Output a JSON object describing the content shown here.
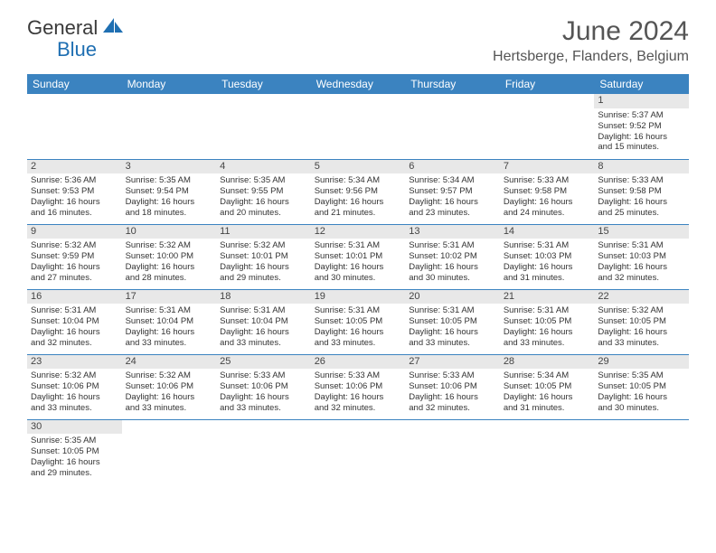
{
  "logo": {
    "text1": "General",
    "text2": "Blue"
  },
  "title": "June 2024",
  "location": "Hertsberge, Flanders, Belgium",
  "colors": {
    "header_bg": "#3b83c0",
    "header_text": "#ffffff",
    "daynum_bg": "#e8e8e8",
    "border": "#3b83c0",
    "text": "#333333",
    "logo_blue": "#1f6fb2"
  },
  "weekdays": [
    "Sunday",
    "Monday",
    "Tuesday",
    "Wednesday",
    "Thursday",
    "Friday",
    "Saturday"
  ],
  "weeks": [
    [
      null,
      null,
      null,
      null,
      null,
      null,
      {
        "n": "1",
        "sr": "Sunrise: 5:37 AM",
        "ss": "Sunset: 9:52 PM",
        "d1": "Daylight: 16 hours",
        "d2": "and 15 minutes."
      }
    ],
    [
      {
        "n": "2",
        "sr": "Sunrise: 5:36 AM",
        "ss": "Sunset: 9:53 PM",
        "d1": "Daylight: 16 hours",
        "d2": "and 16 minutes."
      },
      {
        "n": "3",
        "sr": "Sunrise: 5:35 AM",
        "ss": "Sunset: 9:54 PM",
        "d1": "Daylight: 16 hours",
        "d2": "and 18 minutes."
      },
      {
        "n": "4",
        "sr": "Sunrise: 5:35 AM",
        "ss": "Sunset: 9:55 PM",
        "d1": "Daylight: 16 hours",
        "d2": "and 20 minutes."
      },
      {
        "n": "5",
        "sr": "Sunrise: 5:34 AM",
        "ss": "Sunset: 9:56 PM",
        "d1": "Daylight: 16 hours",
        "d2": "and 21 minutes."
      },
      {
        "n": "6",
        "sr": "Sunrise: 5:34 AM",
        "ss": "Sunset: 9:57 PM",
        "d1": "Daylight: 16 hours",
        "d2": "and 23 minutes."
      },
      {
        "n": "7",
        "sr": "Sunrise: 5:33 AM",
        "ss": "Sunset: 9:58 PM",
        "d1": "Daylight: 16 hours",
        "d2": "and 24 minutes."
      },
      {
        "n": "8",
        "sr": "Sunrise: 5:33 AM",
        "ss": "Sunset: 9:58 PM",
        "d1": "Daylight: 16 hours",
        "d2": "and 25 minutes."
      }
    ],
    [
      {
        "n": "9",
        "sr": "Sunrise: 5:32 AM",
        "ss": "Sunset: 9:59 PM",
        "d1": "Daylight: 16 hours",
        "d2": "and 27 minutes."
      },
      {
        "n": "10",
        "sr": "Sunrise: 5:32 AM",
        "ss": "Sunset: 10:00 PM",
        "d1": "Daylight: 16 hours",
        "d2": "and 28 minutes."
      },
      {
        "n": "11",
        "sr": "Sunrise: 5:32 AM",
        "ss": "Sunset: 10:01 PM",
        "d1": "Daylight: 16 hours",
        "d2": "and 29 minutes."
      },
      {
        "n": "12",
        "sr": "Sunrise: 5:31 AM",
        "ss": "Sunset: 10:01 PM",
        "d1": "Daylight: 16 hours",
        "d2": "and 30 minutes."
      },
      {
        "n": "13",
        "sr": "Sunrise: 5:31 AM",
        "ss": "Sunset: 10:02 PM",
        "d1": "Daylight: 16 hours",
        "d2": "and 30 minutes."
      },
      {
        "n": "14",
        "sr": "Sunrise: 5:31 AM",
        "ss": "Sunset: 10:03 PM",
        "d1": "Daylight: 16 hours",
        "d2": "and 31 minutes."
      },
      {
        "n": "15",
        "sr": "Sunrise: 5:31 AM",
        "ss": "Sunset: 10:03 PM",
        "d1": "Daylight: 16 hours",
        "d2": "and 32 minutes."
      }
    ],
    [
      {
        "n": "16",
        "sr": "Sunrise: 5:31 AM",
        "ss": "Sunset: 10:04 PM",
        "d1": "Daylight: 16 hours",
        "d2": "and 32 minutes."
      },
      {
        "n": "17",
        "sr": "Sunrise: 5:31 AM",
        "ss": "Sunset: 10:04 PM",
        "d1": "Daylight: 16 hours",
        "d2": "and 33 minutes."
      },
      {
        "n": "18",
        "sr": "Sunrise: 5:31 AM",
        "ss": "Sunset: 10:04 PM",
        "d1": "Daylight: 16 hours",
        "d2": "and 33 minutes."
      },
      {
        "n": "19",
        "sr": "Sunrise: 5:31 AM",
        "ss": "Sunset: 10:05 PM",
        "d1": "Daylight: 16 hours",
        "d2": "and 33 minutes."
      },
      {
        "n": "20",
        "sr": "Sunrise: 5:31 AM",
        "ss": "Sunset: 10:05 PM",
        "d1": "Daylight: 16 hours",
        "d2": "and 33 minutes."
      },
      {
        "n": "21",
        "sr": "Sunrise: 5:31 AM",
        "ss": "Sunset: 10:05 PM",
        "d1": "Daylight: 16 hours",
        "d2": "and 33 minutes."
      },
      {
        "n": "22",
        "sr": "Sunrise: 5:32 AM",
        "ss": "Sunset: 10:05 PM",
        "d1": "Daylight: 16 hours",
        "d2": "and 33 minutes."
      }
    ],
    [
      {
        "n": "23",
        "sr": "Sunrise: 5:32 AM",
        "ss": "Sunset: 10:06 PM",
        "d1": "Daylight: 16 hours",
        "d2": "and 33 minutes."
      },
      {
        "n": "24",
        "sr": "Sunrise: 5:32 AM",
        "ss": "Sunset: 10:06 PM",
        "d1": "Daylight: 16 hours",
        "d2": "and 33 minutes."
      },
      {
        "n": "25",
        "sr": "Sunrise: 5:33 AM",
        "ss": "Sunset: 10:06 PM",
        "d1": "Daylight: 16 hours",
        "d2": "and 33 minutes."
      },
      {
        "n": "26",
        "sr": "Sunrise: 5:33 AM",
        "ss": "Sunset: 10:06 PM",
        "d1": "Daylight: 16 hours",
        "d2": "and 32 minutes."
      },
      {
        "n": "27",
        "sr": "Sunrise: 5:33 AM",
        "ss": "Sunset: 10:06 PM",
        "d1": "Daylight: 16 hours",
        "d2": "and 32 minutes."
      },
      {
        "n": "28",
        "sr": "Sunrise: 5:34 AM",
        "ss": "Sunset: 10:05 PM",
        "d1": "Daylight: 16 hours",
        "d2": "and 31 minutes."
      },
      {
        "n": "29",
        "sr": "Sunrise: 5:35 AM",
        "ss": "Sunset: 10:05 PM",
        "d1": "Daylight: 16 hours",
        "d2": "and 30 minutes."
      }
    ],
    [
      {
        "n": "30",
        "sr": "Sunrise: 5:35 AM",
        "ss": "Sunset: 10:05 PM",
        "d1": "Daylight: 16 hours",
        "d2": "and 29 minutes."
      },
      null,
      null,
      null,
      null,
      null,
      null
    ]
  ]
}
